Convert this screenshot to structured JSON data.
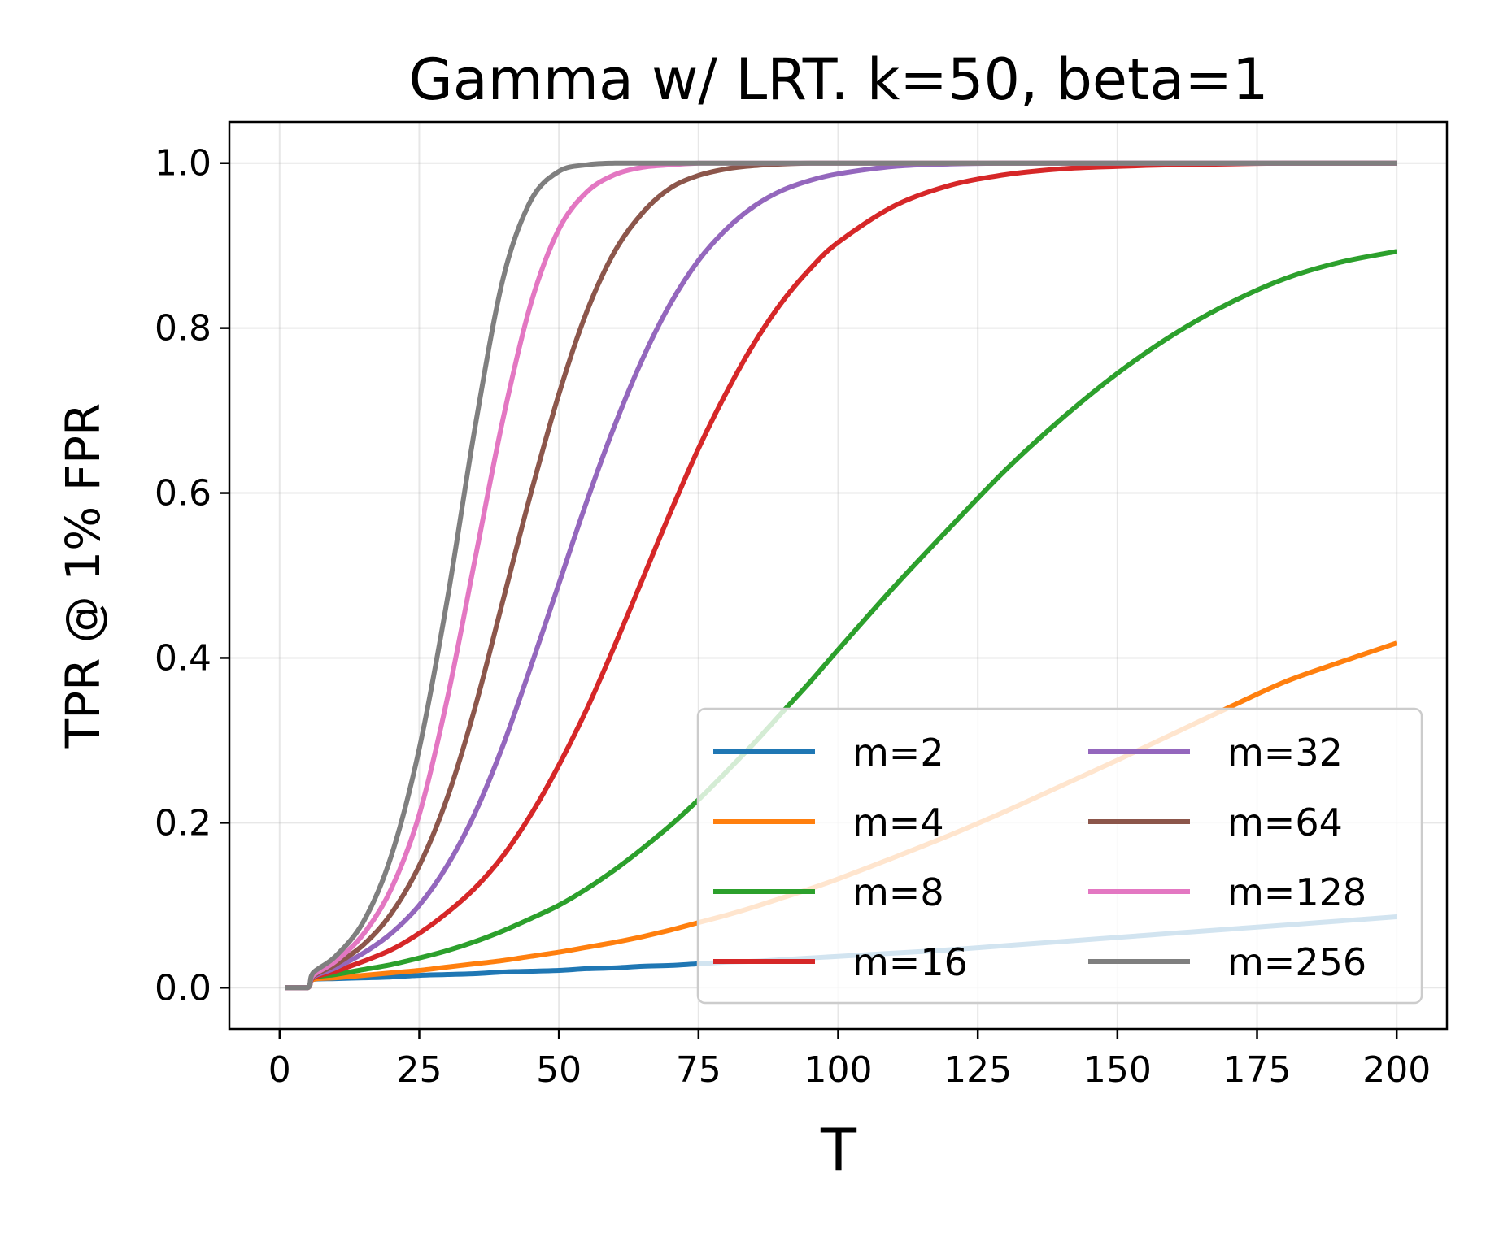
{
  "chart_data": {
    "type": "line",
    "title": "Gamma w/ LRT. k=50, beta=1",
    "xlabel": "T",
    "ylabel": "TPR @ 1% FPR",
    "xlim": [
      -9,
      209
    ],
    "ylim": [
      -0.05,
      1.05
    ],
    "xticks": [
      0,
      25,
      50,
      75,
      100,
      125,
      150,
      175,
      200
    ],
    "yticks": [
      0.0,
      0.2,
      0.4,
      0.6,
      0.8,
      1.0
    ],
    "xtick_labels": [
      "0",
      "25",
      "50",
      "75",
      "100",
      "125",
      "150",
      "175",
      "200"
    ],
    "ytick_labels": [
      "0.0",
      "0.2",
      "0.4",
      "0.6",
      "0.8",
      "1.0"
    ],
    "grid": true,
    "legend": {
      "placement": "lower-right",
      "columns": 2
    },
    "x": [
      1,
      5,
      6,
      10,
      15,
      20,
      25,
      30,
      35,
      40,
      45,
      50,
      55,
      60,
      65,
      70,
      75,
      80,
      85,
      90,
      95,
      100,
      110,
      120,
      130,
      140,
      150,
      160,
      170,
      180,
      190,
      200
    ],
    "series": [
      {
        "name": "m=2",
        "color": "#1f77b4",
        "values": [
          0.0,
          0.0,
          0.01,
          0.011,
          0.012,
          0.013,
          0.015,
          0.016,
          0.017,
          0.019,
          0.02,
          0.021,
          0.023,
          0.024,
          0.026,
          0.027,
          0.029,
          0.031,
          0.032,
          0.034,
          0.036,
          0.038,
          0.042,
          0.046,
          0.051,
          0.056,
          0.061,
          0.066,
          0.071,
          0.076,
          0.081,
          0.086
        ]
      },
      {
        "name": "m=4",
        "color": "#ff7f0e",
        "values": [
          0.0,
          0.0,
          0.01,
          0.012,
          0.015,
          0.018,
          0.021,
          0.025,
          0.029,
          0.033,
          0.038,
          0.043,
          0.049,
          0.055,
          0.062,
          0.07,
          0.079,
          0.088,
          0.098,
          0.109,
          0.12,
          0.132,
          0.158,
          0.185,
          0.214,
          0.245,
          0.276,
          0.308,
          0.34,
          0.371,
          0.395,
          0.418
        ]
      },
      {
        "name": "m=8",
        "color": "#2ca02c",
        "values": [
          0.0,
          0.0,
          0.012,
          0.016,
          0.022,
          0.028,
          0.036,
          0.045,
          0.056,
          0.069,
          0.084,
          0.1,
          0.12,
          0.143,
          0.169,
          0.197,
          0.228,
          0.262,
          0.297,
          0.334,
          0.371,
          0.41,
          0.486,
          0.558,
          0.628,
          0.69,
          0.745,
          0.792,
          0.83,
          0.86,
          0.88,
          0.893
        ]
      },
      {
        "name": "m=16",
        "color": "#d62728",
        "values": [
          0.0,
          0.0,
          0.012,
          0.02,
          0.032,
          0.046,
          0.066,
          0.091,
          0.121,
          0.16,
          0.21,
          0.27,
          0.338,
          0.415,
          0.496,
          0.577,
          0.654,
          0.722,
          0.782,
          0.832,
          0.872,
          0.904,
          0.948,
          0.973,
          0.986,
          0.993,
          0.996,
          0.998,
          0.999,
          1.0,
          1.0,
          1.0
        ]
      },
      {
        "name": "m=32",
        "color": "#9467bd",
        "values": [
          0.0,
          0.0,
          0.013,
          0.024,
          0.042,
          0.066,
          0.1,
          0.148,
          0.212,
          0.294,
          0.39,
          0.49,
          0.59,
          0.682,
          0.763,
          0.83,
          0.882,
          0.92,
          0.948,
          0.967,
          0.979,
          0.987,
          0.996,
          0.999,
          1.0,
          1.0,
          1.0,
          1.0,
          1.0,
          1.0,
          1.0,
          1.0
        ]
      },
      {
        "name": "m=64",
        "color": "#8c564b",
        "values": [
          0.0,
          0.0,
          0.014,
          0.028,
          0.052,
          0.09,
          0.148,
          0.23,
          0.34,
          0.47,
          0.6,
          0.72,
          0.82,
          0.893,
          0.94,
          0.97,
          0.985,
          0.993,
          0.997,
          0.999,
          1.0,
          1.0,
          1.0,
          1.0,
          1.0,
          1.0,
          1.0,
          1.0,
          1.0,
          1.0,
          1.0,
          1.0
        ]
      },
      {
        "name": "m=128",
        "color": "#e377c2",
        "values": [
          0.0,
          0.0,
          0.015,
          0.032,
          0.065,
          0.12,
          0.21,
          0.35,
          0.52,
          0.69,
          0.83,
          0.92,
          0.965,
          0.986,
          0.995,
          0.998,
          1.0,
          1.0,
          1.0,
          1.0,
          1.0,
          1.0,
          1.0,
          1.0,
          1.0,
          1.0,
          1.0,
          1.0,
          1.0,
          1.0,
          1.0,
          1.0
        ]
      },
      {
        "name": "m=256",
        "color": "#7f7f7f",
        "values": [
          0.0,
          0.0,
          0.018,
          0.038,
          0.08,
          0.16,
          0.29,
          0.47,
          0.68,
          0.86,
          0.955,
          0.99,
          0.998,
          1.0,
          1.0,
          1.0,
          1.0,
          1.0,
          1.0,
          1.0,
          1.0,
          1.0,
          1.0,
          1.0,
          1.0,
          1.0,
          1.0,
          1.0,
          1.0,
          1.0,
          1.0,
          1.0
        ]
      }
    ]
  }
}
